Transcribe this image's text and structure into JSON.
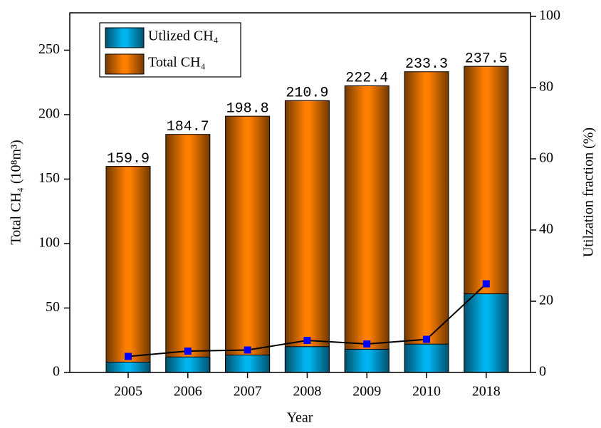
{
  "chart_data": {
    "type": "bar",
    "x_label": "Year",
    "y_label": "Total CH₄ (10⁸m³)",
    "y2_label": "Utilzation fraction (%)",
    "categories": [
      "2005",
      "2006",
      "2007",
      "2008",
      "2009",
      "2010",
      "2018"
    ],
    "series": [
      {
        "name": "Total CH₄",
        "color": "#ff7f00",
        "values": [
          159.9,
          184.7,
          198.8,
          210.9,
          222.4,
          233.3,
          237.5
        ]
      },
      {
        "name": "Utlized CH₄",
        "color": "#00b4f0",
        "values": [
          8,
          12,
          13.5,
          20,
          18,
          22,
          61
        ]
      },
      {
        "type": "line",
        "axis": "y2",
        "color": "#000000",
        "marker_color": "#0000ff",
        "values": [
          4.5,
          6,
          6.3,
          9,
          8,
          9.3,
          24.9
        ]
      }
    ],
    "ylim": [
      0,
      279
    ],
    "yticks": [
      0,
      50,
      100,
      150,
      200,
      250
    ],
    "y2lim": [
      0,
      101
    ],
    "y2ticks": [
      0,
      20,
      40,
      60,
      80,
      100
    ],
    "legend": "top-left"
  }
}
